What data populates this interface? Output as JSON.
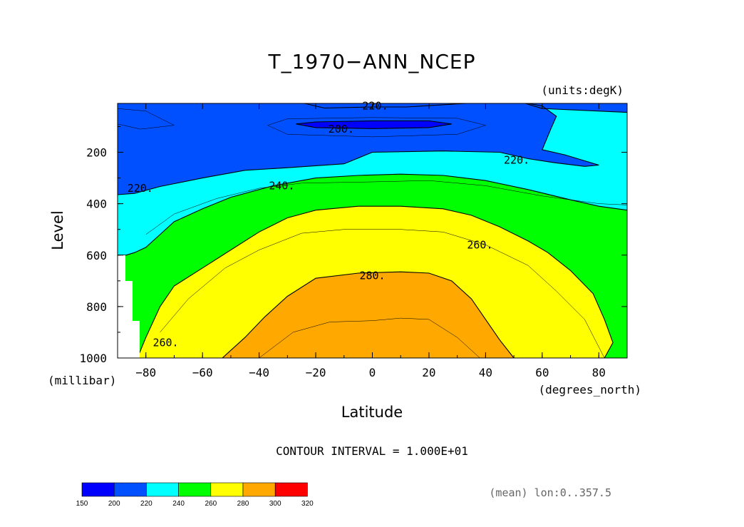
{
  "chart_data": {
    "type": "contour",
    "title": "T_1970−ANN_NCEP",
    "units_label": "(units:degK)",
    "xlabel": "Latitude",
    "x_units": "(degrees_north)",
    "ylabel": "Level",
    "y_units": "(millibar)",
    "xlim": [
      -90,
      90
    ],
    "ylim": [
      1000,
      10
    ],
    "x_ticks": [
      -80,
      -60,
      -40,
      -20,
      0,
      20,
      40,
      60,
      80
    ],
    "x_tick_labels": [
      "−80",
      "−60",
      "−40",
      "−20",
      "0",
      "20",
      "40",
      "60",
      "80"
    ],
    "y_ticks": [
      200,
      400,
      600,
      800,
      1000
    ],
    "y_tick_labels": [
      "200",
      "400",
      "600",
      "800",
      "1000"
    ],
    "contour_interval_text": "CONTOUR INTERVAL = 1.000E+01",
    "contour_levels": [
      150,
      200,
      220,
      240,
      260,
      280,
      300,
      320
    ],
    "fill_colors": [
      "#0000ff",
      "#0050ff",
      "#00ffff",
      "#00ff00",
      "#ffff00",
      "#ffa800",
      "#ff0000"
    ],
    "contour_labels": [
      {
        "text": "220.",
        "lat": 1,
        "p": 20
      },
      {
        "text": "200.",
        "lat": -11,
        "p": 110
      },
      {
        "text": "220.",
        "lat": 51,
        "p": 230
      },
      {
        "text": "220.",
        "lat": -82,
        "p": 340
      },
      {
        "text": "240.",
        "lat": -32,
        "p": 330
      },
      {
        "text": "260.",
        "lat": 38,
        "p": 560
      },
      {
        "text": "280.",
        "lat": 0,
        "p": 680
      },
      {
        "text": "260.",
        "lat": -73,
        "p": 940
      }
    ],
    "boundaries": {
      "t200": [
        [
          -27,
          90
        ],
        [
          -20,
          82
        ],
        [
          0,
          78
        ],
        [
          20,
          78
        ],
        [
          28,
          90
        ],
        [
          20,
          104
        ],
        [
          0,
          108
        ],
        [
          -20,
          104
        ],
        [
          -27,
          90
        ]
      ],
      "t220_stratosphere": [
        [
          -24,
          10
        ],
        [
          -17,
          28
        ],
        [
          0,
          24
        ],
        [
          12,
          24
        ],
        [
          18,
          20
        ],
        [
          33,
          10
        ]
      ],
      "t220_right_blob": [
        [
          54,
          10
        ],
        [
          60,
          30
        ],
        [
          90,
          45
        ]
      ],
      "t220_main": [
        [
          -90,
          365
        ],
        [
          -84,
          360
        ],
        [
          -75,
          333
        ],
        [
          -60,
          300
        ],
        [
          -45,
          270
        ],
        [
          -30,
          260
        ],
        [
          -10,
          245
        ],
        [
          0,
          200
        ],
        [
          25,
          195
        ],
        [
          45,
          200
        ],
        [
          55,
          225
        ],
        [
          64,
          240
        ],
        [
          75,
          255
        ],
        [
          80,
          250
        ],
        [
          68,
          210
        ],
        [
          60,
          190
        ],
        [
          63,
          110
        ],
        [
          65,
          60
        ],
        [
          60,
          20
        ],
        [
          55,
          10
        ]
      ],
      "t240": [
        [
          -90,
          600
        ],
        [
          -87,
          600
        ],
        [
          -84,
          590
        ],
        [
          -80,
          570
        ],
        [
          -75,
          520
        ],
        [
          -70,
          470
        ],
        [
          -60,
          420
        ],
        [
          -50,
          375
        ],
        [
          -35,
          330
        ],
        [
          -20,
          300
        ],
        [
          -5,
          290
        ],
        [
          10,
          285
        ],
        [
          25,
          290
        ],
        [
          40,
          310
        ],
        [
          55,
          345
        ],
        [
          70,
          385
        ],
        [
          80,
          410
        ],
        [
          90,
          425
        ]
      ],
      "t260": [
        [
          -83,
          1000
        ],
        [
          -80,
          920
        ],
        [
          -75,
          800
        ],
        [
          -70,
          720
        ],
        [
          -60,
          650
        ],
        [
          -50,
          580
        ],
        [
          -40,
          510
        ],
        [
          -30,
          455
        ],
        [
          -20,
          425
        ],
        [
          -5,
          410
        ],
        [
          10,
          410
        ],
        [
          25,
          420
        ],
        [
          35,
          445
        ],
        [
          45,
          490
        ],
        [
          55,
          545
        ],
        [
          62,
          590
        ],
        [
          70,
          660
        ],
        [
          78,
          750
        ],
        [
          82,
          850
        ],
        [
          85,
          940
        ],
        [
          82,
          1000
        ]
      ],
      "t280": [
        [
          -53,
          1000
        ],
        [
          -45,
          920
        ],
        [
          -38,
          840
        ],
        [
          -30,
          760
        ],
        [
          -20,
          690
        ],
        [
          -5,
          670
        ],
        [
          10,
          665
        ],
        [
          20,
          670
        ],
        [
          28,
          700
        ],
        [
          35,
          770
        ],
        [
          40,
          850
        ],
        [
          45,
          930
        ],
        [
          50,
          1000
        ]
      ]
    },
    "interior_lines": [
      [
        [
          -80,
          520
        ],
        [
          -70,
          440
        ],
        [
          -55,
          380
        ],
        [
          -40,
          340
        ],
        [
          -25,
          320
        ],
        [
          0,
          315
        ],
        [
          20,
          310
        ],
        [
          40,
          330
        ],
        [
          60,
          370
        ],
        [
          80,
          400
        ],
        [
          90,
          405
        ]
      ],
      [
        [
          -75,
          900
        ],
        [
          -65,
          770
        ],
        [
          -52,
          650
        ],
        [
          -40,
          580
        ],
        [
          -25,
          515
        ],
        [
          -10,
          500
        ],
        [
          10,
          500
        ],
        [
          25,
          510
        ],
        [
          40,
          560
        ],
        [
          55,
          640
        ],
        [
          65,
          740
        ],
        [
          75,
          850
        ],
        [
          82,
          1000
        ]
      ],
      [
        [
          -40,
          1000
        ],
        [
          -28,
          900
        ],
        [
          -15,
          860
        ],
        [
          0,
          855
        ],
        [
          10,
          845
        ],
        [
          20,
          850
        ],
        [
          30,
          920
        ],
        [
          38,
          1000
        ]
      ]
    ],
    "colorbar": {
      "levels": [
        "150",
        "200",
        "220",
        "240",
        "260",
        "280",
        "300",
        "320"
      ]
    },
    "footnote": "(mean) lon:0..357.5"
  }
}
